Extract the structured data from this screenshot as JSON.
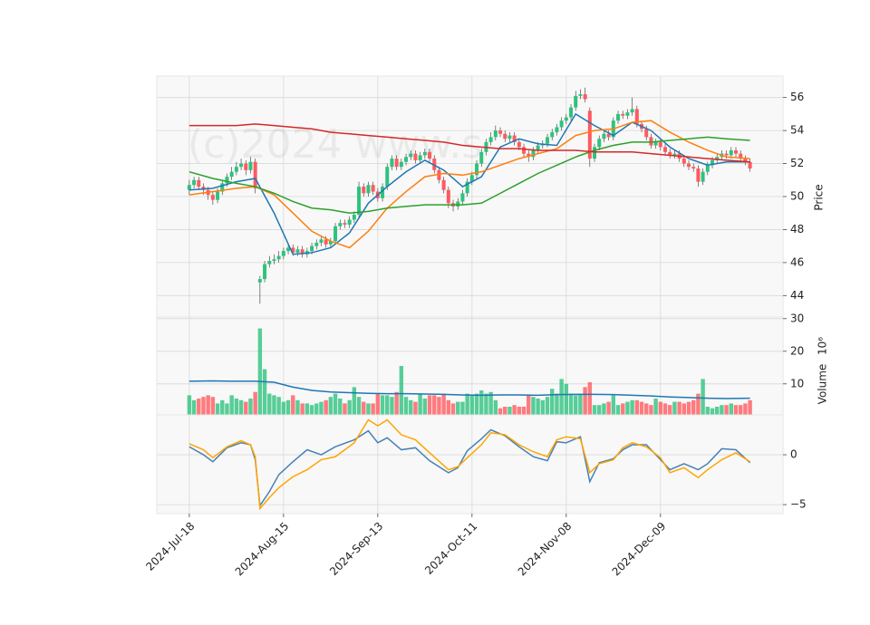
{
  "chart_data": [
    {
      "type": "candlestick",
      "watermark": "(c)2024 www.s",
      "y_label": "Price",
      "xlim": [
        -6.9,
        126
      ],
      "ylim": [
        42.7,
        57.3
      ],
      "yticks": [
        44,
        46,
        48,
        50,
        52,
        54,
        56
      ],
      "grid": true,
      "up_color": "#2ec27e",
      "down_color": "#ff5a5f",
      "open": [
        50.4,
        50.7,
        51.0,
        50.6,
        50.4,
        50.1,
        49.8,
        50.3,
        50.8,
        51.2,
        51.5,
        51.8,
        52.0,
        51.6,
        52.1,
        44.8,
        45.0,
        45.9,
        46.1,
        46.2,
        46.4,
        46.7,
        46.9,
        46.6,
        46.8,
        46.5,
        46.7,
        47.0,
        47.2,
        47.4,
        47.1,
        47.3,
        48.2,
        48.4,
        48.3,
        48.6,
        48.9,
        50.6,
        50.2,
        50.7,
        50.3,
        49.9,
        50.6,
        51.8,
        52.3,
        51.8,
        52.1,
        52.4,
        52.6,
        52.2,
        52.5,
        52.7,
        52.3,
        51.6,
        51.0,
        50.4,
        49.6,
        49.4,
        49.7,
        50.2,
        50.9,
        51.3,
        52.0,
        52.7,
        53.3,
        53.6,
        54.0,
        53.8,
        53.5,
        53.7,
        53.3,
        53.0,
        52.6,
        52.4,
        52.8,
        53.1,
        53.2,
        53.6,
        53.9,
        54.2,
        54.6,
        54.8,
        55.4,
        56.1,
        56.2,
        55.2,
        52.3,
        53.0,
        53.5,
        53.8,
        53.6,
        54.6,
        55.0,
        54.9,
        55.1,
        55.3,
        54.4,
        54.1,
        53.6,
        53.1,
        53.3,
        53.0,
        52.7,
        52.5,
        52.6,
        52.3,
        52.0,
        51.8,
        51.7,
        50.9,
        51.5,
        51.9,
        52.2,
        52.4,
        52.6,
        52.5,
        52.8,
        52.6,
        52.3,
        52.1
      ],
      "high": [
        51.0,
        51.2,
        51.2,
        50.8,
        50.6,
        50.3,
        50.5,
        51.0,
        51.4,
        51.8,
        52.1,
        52.3,
        52.2,
        52.4,
        52.3,
        45.2,
        46.1,
        46.4,
        46.5,
        46.7,
        46.9,
        47.1,
        47.1,
        47.0,
        47.0,
        46.9,
        47.2,
        47.4,
        47.6,
        47.6,
        47.5,
        48.4,
        48.6,
        48.6,
        48.8,
        49.1,
        50.9,
        50.8,
        50.9,
        50.9,
        50.5,
        50.8,
        52.0,
        52.5,
        52.5,
        52.3,
        52.6,
        52.8,
        52.8,
        52.7,
        52.9,
        52.9,
        52.5,
        51.8,
        51.2,
        50.6,
        49.8,
        49.9,
        50.4,
        51.1,
        51.5,
        52.2,
        52.9,
        53.5,
        53.9,
        54.3,
        54.2,
        54.0,
        53.9,
        53.9,
        53.5,
        53.2,
        52.8,
        53.0,
        53.3,
        53.4,
        53.8,
        54.1,
        54.4,
        54.8,
        55.0,
        55.6,
        56.4,
        56.5,
        56.6,
        55.4,
        53.2,
        53.7,
        54.0,
        54.0,
        54.8,
        55.2,
        55.2,
        55.3,
        56.0,
        55.5,
        54.6,
        54.3,
        53.8,
        53.5,
        53.5,
        53.2,
        52.9,
        52.8,
        52.8,
        52.5,
        52.2,
        52.0,
        51.9,
        51.7,
        52.1,
        52.4,
        52.6,
        52.8,
        52.8,
        53.0,
        53.0,
        52.8,
        52.5,
        52.3
      ],
      "low": [
        50.1,
        50.5,
        50.4,
        50.1,
        49.8,
        49.5,
        49.6,
        50.1,
        50.6,
        51.0,
        51.3,
        51.6,
        51.3,
        51.4,
        50.2,
        43.5,
        44.8,
        45.7,
        45.9,
        46.0,
        46.2,
        46.5,
        46.4,
        46.4,
        46.3,
        46.3,
        46.5,
        46.8,
        47.0,
        46.9,
        46.9,
        47.1,
        48.0,
        48.1,
        48.1,
        48.4,
        48.7,
        50.0,
        50.0,
        50.1,
        49.7,
        49.7,
        50.4,
        51.6,
        51.6,
        51.6,
        51.9,
        52.2,
        52.0,
        52.0,
        52.3,
        52.1,
        51.4,
        50.8,
        50.2,
        49.3,
        49.1,
        49.2,
        49.5,
        50.0,
        50.7,
        51.1,
        51.8,
        52.5,
        53.1,
        53.4,
        53.6,
        53.3,
        53.3,
        53.1,
        52.8,
        52.4,
        52.1,
        52.2,
        52.6,
        52.9,
        53.0,
        53.4,
        53.7,
        54.0,
        54.4,
        54.6,
        55.2,
        55.9,
        55.7,
        51.8,
        52.1,
        52.8,
        53.3,
        53.4,
        53.4,
        54.4,
        54.7,
        54.7,
        54.9,
        54.2,
        53.9,
        53.4,
        52.9,
        52.9,
        52.8,
        52.5,
        52.3,
        52.3,
        52.1,
        51.8,
        51.6,
        51.5,
        50.6,
        50.7,
        51.3,
        51.7,
        52.0,
        52.2,
        52.3,
        52.3,
        52.4,
        52.1,
        51.9,
        51.5
      ],
      "close": [
        50.7,
        51.0,
        50.6,
        50.4,
        50.1,
        49.8,
        50.3,
        50.8,
        51.2,
        51.5,
        51.8,
        52.0,
        51.6,
        52.1,
        50.5,
        45.0,
        45.9,
        46.1,
        46.2,
        46.4,
        46.7,
        46.9,
        46.6,
        46.8,
        46.5,
        46.7,
        47.0,
        47.2,
        47.4,
        47.1,
        47.3,
        48.2,
        48.4,
        48.3,
        48.6,
        48.9,
        50.6,
        50.2,
        50.7,
        50.3,
        49.9,
        50.6,
        51.8,
        52.3,
        51.8,
        52.1,
        52.4,
        52.6,
        52.2,
        52.5,
        52.7,
        52.3,
        51.6,
        51.0,
        50.4,
        49.6,
        49.4,
        49.7,
        50.2,
        50.9,
        51.3,
        52.0,
        52.7,
        53.3,
        53.6,
        54.0,
        53.8,
        53.5,
        53.7,
        53.3,
        53.0,
        52.6,
        52.4,
        52.8,
        53.1,
        53.2,
        53.6,
        53.9,
        54.2,
        54.6,
        54.8,
        55.4,
        56.1,
        56.2,
        55.9,
        52.3,
        53.0,
        53.5,
        53.8,
        53.6,
        54.6,
        55.0,
        54.9,
        55.1,
        55.3,
        54.4,
        54.1,
        53.6,
        53.1,
        53.3,
        53.0,
        52.7,
        52.5,
        52.6,
        52.3,
        52.0,
        51.8,
        51.7,
        50.9,
        51.5,
        51.9,
        52.2,
        52.4,
        52.6,
        52.5,
        52.8,
        52.6,
        52.3,
        52.1,
        51.7
      ],
      "series": [
        {
          "color": "#1f77b4",
          "x": [
            0,
            5,
            10,
            14,
            18,
            22,
            26,
            30,
            34,
            38,
            42,
            46,
            50,
            54,
            58,
            62,
            66,
            70,
            74,
            78,
            82,
            86,
            90,
            94,
            98,
            102,
            106,
            110,
            114,
            119
          ],
          "values": [
            50.4,
            50.5,
            50.9,
            51.1,
            49.0,
            46.5,
            46.6,
            46.9,
            47.8,
            49.6,
            50.6,
            51.5,
            52.2,
            51.6,
            50.6,
            51.2,
            53.0,
            53.5,
            53.2,
            53.1,
            55.0,
            54.3,
            53.7,
            54.5,
            54.0,
            53.0,
            52.3,
            51.9,
            52.1,
            52.1
          ]
        },
        {
          "color": "#ff7f0e",
          "x": [
            0,
            5,
            10,
            14,
            18,
            22,
            26,
            30,
            34,
            38,
            42,
            46,
            50,
            54,
            58,
            62,
            66,
            70,
            74,
            78,
            82,
            86,
            90,
            94,
            98,
            102,
            106,
            110,
            114,
            119
          ],
          "values": [
            50.1,
            50.3,
            50.5,
            50.6,
            50.1,
            49.0,
            47.9,
            47.3,
            46.9,
            47.9,
            49.3,
            50.3,
            51.2,
            51.4,
            51.3,
            51.5,
            51.9,
            52.3,
            52.6,
            52.9,
            53.7,
            54.0,
            54.1,
            54.5,
            54.6,
            53.9,
            53.3,
            52.8,
            52.4,
            52.3
          ]
        },
        {
          "color": "#2ca02c",
          "x": [
            0,
            5,
            10,
            14,
            18,
            22,
            26,
            30,
            34,
            38,
            42,
            46,
            50,
            54,
            58,
            62,
            66,
            70,
            74,
            78,
            82,
            86,
            90,
            94,
            98,
            102,
            106,
            110,
            114,
            119
          ],
          "values": [
            51.5,
            51.1,
            50.8,
            50.6,
            50.2,
            49.7,
            49.3,
            49.2,
            49.0,
            49.1,
            49.3,
            49.4,
            49.5,
            49.5,
            49.5,
            49.6,
            50.2,
            50.8,
            51.4,
            51.9,
            52.4,
            52.8,
            53.1,
            53.3,
            53.3,
            53.4,
            53.5,
            53.6,
            53.5,
            53.4
          ]
        },
        {
          "color": "#d62728",
          "x": [
            0,
            5,
            10,
            14,
            18,
            22,
            26,
            30,
            34,
            38,
            42,
            46,
            50,
            54,
            58,
            62,
            66,
            70,
            74,
            78,
            82,
            86,
            90,
            94,
            98,
            102,
            106,
            110,
            114,
            119
          ],
          "values": [
            54.3,
            54.3,
            54.3,
            54.4,
            54.3,
            54.2,
            54.1,
            53.9,
            53.8,
            53.7,
            53.6,
            53.5,
            53.4,
            53.3,
            53.1,
            53.0,
            52.9,
            52.9,
            52.8,
            52.8,
            52.8,
            52.7,
            52.7,
            52.7,
            52.6,
            52.5,
            52.4,
            52.3,
            52.2,
            52.1
          ]
        }
      ]
    },
    {
      "type": "bar",
      "y_label": "Volume",
      "offset_label": "10⁶",
      "xlim": [
        -6.9,
        126
      ],
      "ylim": [
        0.5,
        30.5
      ],
      "yticks": [
        10,
        20,
        30
      ],
      "grid": true,
      "values": [
        6.5,
        5,
        5.5,
        6,
        6.5,
        6,
        4,
        5,
        4,
        6.5,
        5.5,
        5,
        4.5,
        5.5,
        7.5,
        27,
        14.5,
        7,
        6.5,
        6,
        4.5,
        5,
        6.5,
        5,
        4,
        4,
        3.5,
        4,
        4.5,
        5,
        6,
        7,
        5.5,
        4,
        5,
        9,
        6,
        4.5,
        4,
        4,
        7,
        6.5,
        6.5,
        6,
        7.5,
        15.5,
        6,
        5,
        4.5,
        7,
        5.5,
        6.5,
        6.5,
        6,
        7,
        5,
        4,
        4.5,
        4.5,
        7,
        6.5,
        7,
        8,
        7,
        7.5,
        5,
        2.5,
        3,
        3,
        3.5,
        3,
        3,
        6.5,
        6,
        5.5,
        5,
        6,
        8.5,
        7,
        11.5,
        10,
        7,
        6.5,
        7,
        9,
        10.5,
        3.5,
        3.5,
        4,
        4.5,
        6.5,
        3.5,
        4,
        4.5,
        5,
        5,
        4.5,
        4,
        3.5,
        5.5,
        4.5,
        4,
        3.5,
        4.5,
        4.5,
        4,
        4.5,
        5,
        7,
        11.5,
        3,
        2.5,
        3,
        3.5,
        3.5,
        4,
        3.5,
        3.5,
        4,
        5
      ],
      "series": [
        {
          "color": "#1f77b4",
          "x": [
            0,
            5,
            10,
            14,
            18,
            22,
            26,
            30,
            34,
            38,
            42,
            46,
            50,
            54,
            58,
            62,
            66,
            70,
            74,
            78,
            82,
            86,
            90,
            94,
            98,
            102,
            106,
            110,
            114,
            119
          ],
          "values": [
            10.8,
            10.9,
            10.8,
            10.8,
            10.5,
            9.0,
            8.0,
            7.5,
            7.3,
            7.1,
            7.0,
            7.0,
            6.9,
            6.8,
            6.6,
            6.5,
            6.6,
            6.6,
            6.5,
            6.7,
            6.8,
            6.8,
            6.7,
            6.5,
            6.3,
            6.0,
            5.8,
            5.6,
            5.5,
            5.6
          ]
        }
      ]
    },
    {
      "type": "line",
      "xlim": [
        -6.9,
        126
      ],
      "ylim": [
        -5.9,
        4
      ],
      "yticks": [
        {
          "value": -5,
          "label": "−5"
        },
        0
      ],
      "grid": true,
      "xticks": [
        {
          "value": 0,
          "label": "2024-Jul-18"
        },
        {
          "value": 20,
          "label": "2024-Aug-15"
        },
        {
          "value": 40,
          "label": "2024-Sep-13"
        },
        {
          "value": 60,
          "label": "2024-Oct-11"
        },
        {
          "value": 80,
          "label": "2024-Nov-08"
        },
        {
          "value": 100,
          "label": "2024-Dec-09"
        }
      ],
      "series": [
        {
          "color": "#4682b4",
          "x": [
            0,
            3,
            5,
            8,
            11,
            13,
            14,
            15,
            17,
            19,
            22,
            25,
            28,
            31,
            35,
            38,
            40,
            42,
            45,
            48,
            51,
            55,
            57,
            59,
            62,
            64,
            67,
            70,
            73,
            76,
            78,
            80,
            83,
            85,
            87,
            90,
            92,
            94,
            97,
            100,
            102,
            105,
            108,
            110,
            113,
            116,
            119
          ],
          "values": [
            0.8,
            0.0,
            -0.7,
            0.7,
            1.2,
            1.0,
            -0.5,
            -5.1,
            -3.7,
            -2.0,
            -0.7,
            0.5,
            0.0,
            0.8,
            1.5,
            2.4,
            1.2,
            1.7,
            0.5,
            0.7,
            -0.6,
            -1.8,
            -1.3,
            0.4,
            1.6,
            2.5,
            1.9,
            0.8,
            -0.2,
            -0.6,
            1.3,
            1.2,
            1.8,
            -2.7,
            -0.8,
            -0.4,
            0.5,
            1.0,
            1.0,
            -0.5,
            -1.5,
            -0.9,
            -1.5,
            -0.9,
            0.6,
            0.5,
            -0.8
          ]
        },
        {
          "color": "#ffa500",
          "x": [
            0,
            3,
            5,
            8,
            11,
            13,
            14,
            15,
            17,
            19,
            22,
            25,
            28,
            31,
            35,
            38,
            40,
            42,
            45,
            48,
            51,
            55,
            57,
            59,
            62,
            64,
            67,
            70,
            73,
            76,
            78,
            80,
            83,
            85,
            87,
            90,
            92,
            94,
            97,
            100,
            102,
            105,
            108,
            110,
            113,
            116,
            119
          ],
          "values": [
            1.1,
            0.5,
            -0.3,
            0.8,
            1.4,
            1.0,
            -0.2,
            -5.4,
            -4.3,
            -3.3,
            -2.2,
            -1.5,
            -0.5,
            -0.2,
            1.2,
            3.5,
            2.9,
            3.5,
            2.0,
            1.5,
            0.2,
            -1.5,
            -1.2,
            -0.3,
            1.0,
            2.2,
            2.0,
            1.0,
            0.3,
            -0.2,
            1.5,
            1.8,
            1.6,
            -1.8,
            -0.9,
            -0.5,
            0.7,
            1.2,
            0.8,
            -0.3,
            -1.8,
            -1.3,
            -2.3,
            -1.5,
            -0.5,
            0.2,
            -0.7
          ]
        }
      ]
    }
  ]
}
